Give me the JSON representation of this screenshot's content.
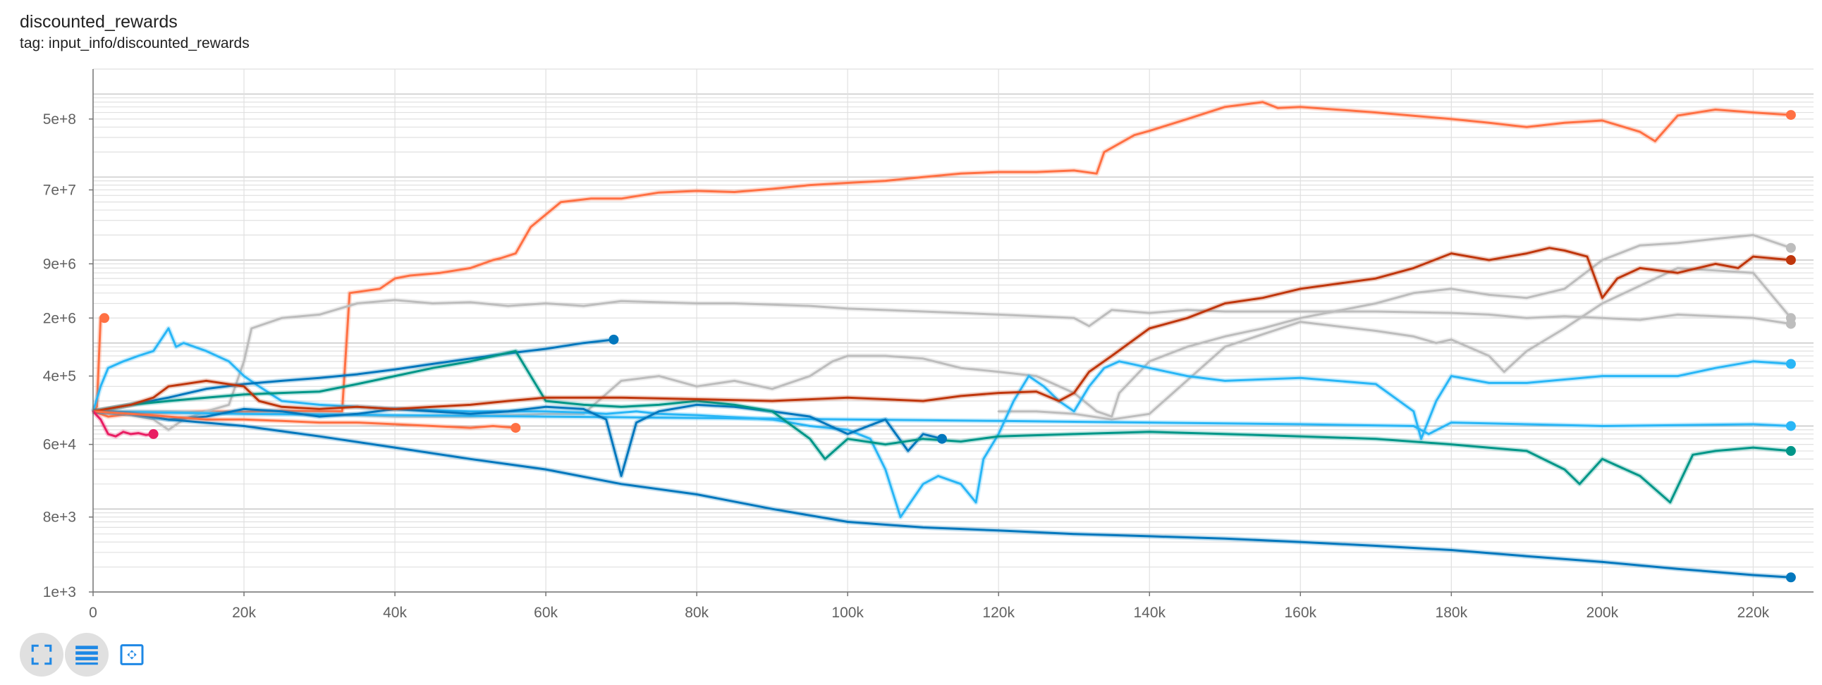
{
  "header": {
    "title": "discounted_rewards",
    "subtitle": "tag: input_info/discounted_rewards"
  },
  "toolbar": [
    {
      "name": "fit-expand-icon"
    },
    {
      "name": "data-table-icon"
    },
    {
      "name": "fit-domain-icon"
    }
  ],
  "chart_data": {
    "type": "line",
    "title": "discounted_rewards",
    "subtitle": "tag: input_info/discounted_rewards",
    "xlabel": "",
    "ylabel": "",
    "x_scale": "linear",
    "y_scale": "log",
    "xlim": [
      0,
      228000
    ],
    "ylim": [
      1000,
      2000000000
    ],
    "x_ticks": [
      0,
      20000,
      40000,
      60000,
      80000,
      100000,
      120000,
      140000,
      160000,
      180000,
      200000,
      220000
    ],
    "x_tick_labels": [
      "0",
      "20k",
      "40k",
      "60k",
      "80k",
      "100k",
      "120k",
      "140k",
      "160k",
      "180k",
      "200k",
      "220k"
    ],
    "y_ticks": [
      1000,
      8000,
      60000,
      400000,
      2000000,
      9000000,
      70000000,
      500000000
    ],
    "y_tick_labels": [
      "1e+3",
      "8e+3",
      "6e+4",
      "4e+5",
      "2e+6",
      "9e+6",
      "7e+7",
      "5e+8"
    ],
    "grid": true,
    "legend": "none",
    "series": [
      {
        "color": "#ff7043",
        "x": [
          0,
          2000,
          5000,
          10000,
          15000,
          20000,
          25000,
          30000,
          33000,
          34000,
          38000,
          40000,
          42000,
          46000,
          50000,
          53000,
          54000,
          56000,
          58000,
          62000,
          66000,
          70000,
          75000,
          80000,
          85000,
          90000,
          95000,
          100000,
          105000,
          110000,
          115000,
          120000,
          125000,
          130000,
          133000,
          134000,
          138000,
          140000,
          145000,
          150000,
          155000,
          157000,
          160000,
          170000,
          180000,
          185000,
          190000,
          195000,
          200000,
          205000,
          207000,
          210000,
          215000,
          220000,
          225000
        ],
        "y": [
          150000,
          130000,
          140000,
          145000,
          150000,
          148000,
          152000,
          150000,
          150000,
          4000000,
          4500000,
          6000000,
          6500000,
          7000000,
          8000000,
          10000000,
          10500000,
          12000000,
          25000000,
          50000000,
          55000000,
          55000000,
          65000000,
          68000000,
          66000000,
          72000000,
          80000000,
          85000000,
          90000000,
          100000000,
          110000000,
          115000000,
          115000000,
          120000000,
          110000000,
          200000000,
          320000000,
          360000000,
          500000000,
          700000000,
          800000000,
          680000000,
          700000000,
          600000000,
          500000000,
          450000000,
          400000000,
          450000000,
          480000000,
          350000000,
          270000000,
          550000000,
          650000000,
          600000000,
          560000000
        ]
      },
      {
        "color": "#ff7043",
        "x": [
          0,
          500,
          1000,
          1500
        ],
        "y": [
          150000,
          170000,
          2000000,
          2000000
        ]
      },
      {
        "color": "#bdbdbd",
        "x": [
          0,
          4000,
          8000,
          10000,
          12000,
          15000,
          18000,
          20000,
          21000,
          25000,
          30000,
          35000,
          40000,
          45000,
          50000,
          55000,
          60000,
          65000,
          70000,
          75000,
          80000,
          85000,
          90000,
          95000,
          100000,
          105000,
          110000,
          115000,
          120000,
          125000,
          130000,
          132000,
          135000,
          140000,
          145000,
          150000,
          160000,
          170000,
          180000,
          185000,
          190000,
          195000,
          200000,
          205000,
          210000,
          215000,
          220000,
          225000
        ],
        "y": [
          150000,
          140000,
          120000,
          90000,
          120000,
          150000,
          180000,
          600000,
          1500000,
          2000000,
          2200000,
          3000000,
          3300000,
          3000000,
          3100000,
          2800000,
          3000000,
          2800000,
          3200000,
          3100000,
          3000000,
          3000000,
          2900000,
          2800000,
          2600000,
          2500000,
          2400000,
          2300000,
          2200000,
          2100000,
          2000000,
          1600000,
          2500000,
          2300000,
          2500000,
          2400000,
          2400000,
          2400000,
          2300000,
          2200000,
          2000000,
          2100000,
          2000000,
          1900000,
          2200000,
          2100000,
          2000000,
          1700000
        ]
      },
      {
        "color": "#bdbdbd",
        "x": [
          0,
          10000,
          20000,
          30000,
          40000,
          50000,
          60000,
          65000,
          70000,
          75000,
          80000,
          85000,
          90000,
          95000,
          98000,
          100000,
          105000,
          110000,
          115000,
          120000,
          125000,
          130000,
          133000,
          135000,
          136000,
          140000,
          145000,
          150000,
          155000,
          160000,
          170000,
          175000,
          180000,
          185000,
          190000,
          195000,
          200000,
          205000,
          210000,
          215000,
          220000,
          225000
        ],
        "y": [
          150000,
          150000,
          140000,
          140000,
          130000,
          130000,
          140000,
          140000,
          350000,
          400000,
          300000,
          350000,
          280000,
          400000,
          600000,
          700000,
          700000,
          650000,
          500000,
          450000,
          400000,
          250000,
          150000,
          130000,
          250000,
          600000,
          900000,
          1200000,
          1500000,
          2000000,
          3000000,
          4000000,
          4500000,
          3800000,
          3500000,
          4500000,
          10000000,
          15000000,
          16000000,
          18000000,
          20000000,
          14000000
        ]
      },
      {
        "color": "#bdbdbd",
        "x": [
          120000,
          125000,
          130000,
          135000,
          140000,
          150000,
          160000,
          170000,
          175000,
          178000,
          180000,
          185000,
          187000,
          190000,
          195000,
          200000,
          210000,
          220000,
          225000
        ],
        "y": [
          150000,
          150000,
          140000,
          120000,
          140000,
          900000,
          1800000,
          1400000,
          1200000,
          1000000,
          1100000,
          700000,
          450000,
          800000,
          1500000,
          3000000,
          8000000,
          7000000,
          2000000
        ]
      },
      {
        "color": "#29b6f6",
        "x": [
          0,
          1000,
          2000,
          4000,
          6000,
          8000,
          10000,
          11000,
          12000,
          15000,
          18000,
          20000,
          22000,
          25000,
          30000,
          35000,
          40000,
          45000,
          50000,
          60000,
          65000,
          68000,
          70000,
          72000,
          75000,
          80000,
          90000,
          95000,
          100000,
          103000,
          105000,
          107000,
          110000,
          112000,
          115000,
          117000,
          118000,
          120000,
          122000,
          124000,
          126000,
          128000,
          130000,
          132000,
          134000,
          136000,
          138000,
          140000,
          145000,
          150000,
          160000,
          170000,
          175000,
          176000,
          178000,
          180000,
          185000,
          190000,
          200000,
          210000,
          215000,
          220000,
          225000
        ],
        "y": [
          150000,
          300000,
          500000,
          600000,
          700000,
          800000,
          1500000,
          900000,
          1000000,
          800000,
          600000,
          400000,
          300000,
          200000,
          180000,
          170000,
          160000,
          155000,
          150000,
          150000,
          145000,
          140000,
          145000,
          150000,
          140000,
          135000,
          120000,
          100000,
          90000,
          70000,
          30000,
          8000,
          20000,
          25000,
          20000,
          12000,
          40000,
          80000,
          200000,
          400000,
          300000,
          200000,
          150000,
          300000,
          500000,
          600000,
          550000,
          500000,
          400000,
          350000,
          380000,
          320000,
          150000,
          70000,
          200000,
          400000,
          330000,
          330000,
          400000,
          400000,
          500000,
          600000,
          560000
        ]
      },
      {
        "color": "#29b6f6",
        "x": [
          0,
          20000,
          40000,
          60000,
          80000,
          100000,
          120000,
          140000,
          160000,
          175000,
          177000,
          180000,
          200000,
          220000,
          225000
        ],
        "y": [
          150000,
          140000,
          135000,
          130000,
          125000,
          120000,
          115000,
          110000,
          105000,
          100000,
          80000,
          110000,
          100000,
          105000,
          100000
        ]
      },
      {
        "color": "#0277bd",
        "x": [
          0,
          5000,
          10000,
          20000,
          30000,
          40000,
          50000,
          60000,
          70000,
          80000,
          90000,
          100000,
          110000,
          120000,
          130000,
          140000,
          150000,
          160000,
          170000,
          180000,
          190000,
          200000,
          210000,
          220000,
          225000
        ],
        "y": [
          150000,
          140000,
          120000,
          100000,
          75000,
          55000,
          40000,
          30000,
          20000,
          15000,
          10000,
          7000,
          6000,
          5500,
          5000,
          4700,
          4400,
          4000,
          3600,
          3200,
          2700,
          2300,
          1900,
          1600,
          1500
        ]
      },
      {
        "color": "#0277bd",
        "x": [
          0,
          5000,
          10000,
          15000,
          20000,
          25000,
          30000,
          35000,
          40000,
          45000,
          50000,
          55000,
          60000,
          65000,
          69000
        ],
        "y": [
          150000,
          180000,
          220000,
          280000,
          320000,
          350000,
          380000,
          420000,
          480000,
          560000,
          650000,
          750000,
          850000,
          1000000,
          1100000
        ]
      },
      {
        "color": "#0277bd",
        "x": [
          0,
          5000,
          10000,
          15000,
          20000,
          25000,
          30000,
          35000,
          40000,
          45000,
          50000,
          55000,
          60000,
          65000,
          68000,
          70000,
          72000,
          75000,
          80000,
          85000,
          90000,
          95000,
          100000,
          105000,
          108000,
          110000,
          112500
        ],
        "y": [
          150000,
          140000,
          120000,
          130000,
          160000,
          150000,
          130000,
          140000,
          160000,
          150000,
          140000,
          150000,
          170000,
          160000,
          120000,
          25000,
          110000,
          150000,
          180000,
          170000,
          150000,
          130000,
          80000,
          120000,
          50000,
          80000,
          70000
        ]
      },
      {
        "color": "#009688",
        "x": [
          0,
          5000,
          10000,
          15000,
          20000,
          25000,
          30000,
          35000,
          40000,
          45000,
          50000,
          56000,
          60000,
          65000,
          70000,
          75000,
          80000,
          85000,
          90000,
          95000,
          97000,
          100000,
          105000,
          110000,
          115000,
          120000,
          130000,
          140000,
          150000,
          160000,
          170000,
          180000,
          190000,
          195000,
          197000,
          200000,
          205000,
          209000,
          212000,
          215000,
          220000,
          225000
        ],
        "y": [
          150000,
          180000,
          200000,
          220000,
          240000,
          250000,
          260000,
          320000,
          400000,
          500000,
          600000,
          800000,
          200000,
          180000,
          170000,
          180000,
          200000,
          180000,
          150000,
          70000,
          40000,
          70000,
          60000,
          70000,
          65000,
          75000,
          80000,
          85000,
          80000,
          75000,
          70000,
          60000,
          50000,
          30000,
          20000,
          40000,
          25000,
          12000,
          45000,
          50000,
          55000,
          50000
        ]
      },
      {
        "color": "#bf360c",
        "x": [
          0,
          5000,
          8000,
          10000,
          15000,
          20000,
          22000,
          25000,
          30000,
          35000,
          40000,
          45000,
          50000,
          55000,
          60000,
          70000,
          80000,
          90000,
          100000,
          110000,
          115000,
          120000,
          125000,
          128000,
          130000,
          132000,
          135000,
          140000,
          145000,
          150000,
          155000,
          160000,
          170000,
          175000,
          180000,
          185000,
          190000,
          193000,
          195000,
          198000,
          200000,
          202000,
          205000,
          210000,
          215000,
          218000,
          220000,
          225000
        ],
        "y": [
          150000,
          180000,
          220000,
          300000,
          350000,
          300000,
          200000,
          170000,
          160000,
          170000,
          160000,
          170000,
          180000,
          200000,
          220000,
          220000,
          210000,
          200000,
          220000,
          200000,
          230000,
          250000,
          260000,
          200000,
          250000,
          450000,
          700000,
          1500000,
          2000000,
          3000000,
          3500000,
          4500000,
          6000000,
          8000000,
          12000000,
          10000000,
          12000000,
          14000000,
          13000000,
          11000000,
          3500000,
          6000000,
          8000000,
          7000000,
          9000000,
          8000000,
          11000000,
          10000000
        ]
      },
      {
        "color": "#ff7043",
        "x": [
          0,
          5000,
          10000,
          15000,
          20000,
          25000,
          30000,
          35000,
          40000,
          45000,
          50000,
          53000,
          56000
        ],
        "y": [
          150000,
          140000,
          130000,
          120000,
          120000,
          115000,
          110000,
          110000,
          105000,
          100000,
          95000,
          100000,
          95000
        ]
      },
      {
        "color": "#e91e63",
        "x": [
          0,
          1000,
          2000,
          3000,
          4000,
          5000,
          6000,
          7000,
          8000
        ],
        "y": [
          150000,
          120000,
          80000,
          75000,
          85000,
          80000,
          82000,
          78000,
          80000
        ]
      }
    ]
  }
}
